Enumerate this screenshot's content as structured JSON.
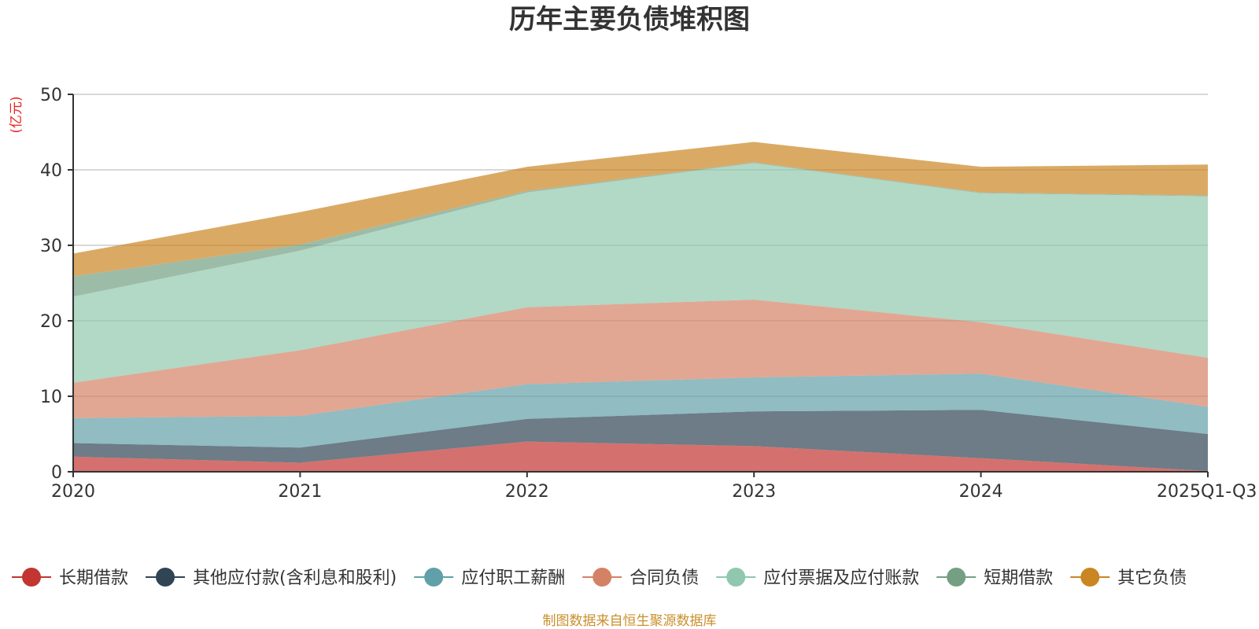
{
  "chart_data": {
    "type": "area",
    "stacked": true,
    "title": "历年主要负债堆积图",
    "ylabel": "(亿元)",
    "xlabel": "",
    "categories": [
      "2020",
      "2021",
      "2022",
      "2023",
      "2024",
      "2025Q1-Q3"
    ],
    "ylim": [
      0,
      50
    ],
    "yticks": [
      0,
      10,
      20,
      30,
      40,
      50
    ],
    "grid": true,
    "legend_position": "bottom",
    "series": [
      {
        "name": "长期借款",
        "color": "#c23531",
        "values": [
          2.0,
          1.2,
          4.0,
          3.4,
          1.8,
          0.1
        ]
      },
      {
        "name": "其他应付款(含利息和股利)",
        "color": "#2f4554",
        "values": [
          1.8,
          2.0,
          3.0,
          4.6,
          6.4,
          4.9
        ]
      },
      {
        "name": "应付职工薪酬",
        "color": "#61a0a8",
        "values": [
          3.3,
          4.2,
          4.6,
          4.5,
          4.8,
          3.6
        ]
      },
      {
        "name": "合同负债",
        "color": "#d48265",
        "values": [
          4.7,
          8.7,
          10.2,
          10.3,
          6.8,
          6.5
        ]
      },
      {
        "name": "应付票据及应付账款",
        "color": "#91c7ae",
        "values": [
          11.4,
          13.2,
          15.2,
          18.1,
          17.1,
          21.4
        ]
      },
      {
        "name": "短期借款",
        "color": "#749f83",
        "values": [
          2.7,
          0.8,
          0.2,
          0.1,
          0.1,
          0.1
        ]
      },
      {
        "name": "其它负债",
        "color": "#ca8622",
        "values": [
          3.0,
          4.3,
          3.2,
          2.7,
          3.4,
          4.1
        ]
      }
    ],
    "source_note": "制图数据来自恒生聚源数据库"
  }
}
